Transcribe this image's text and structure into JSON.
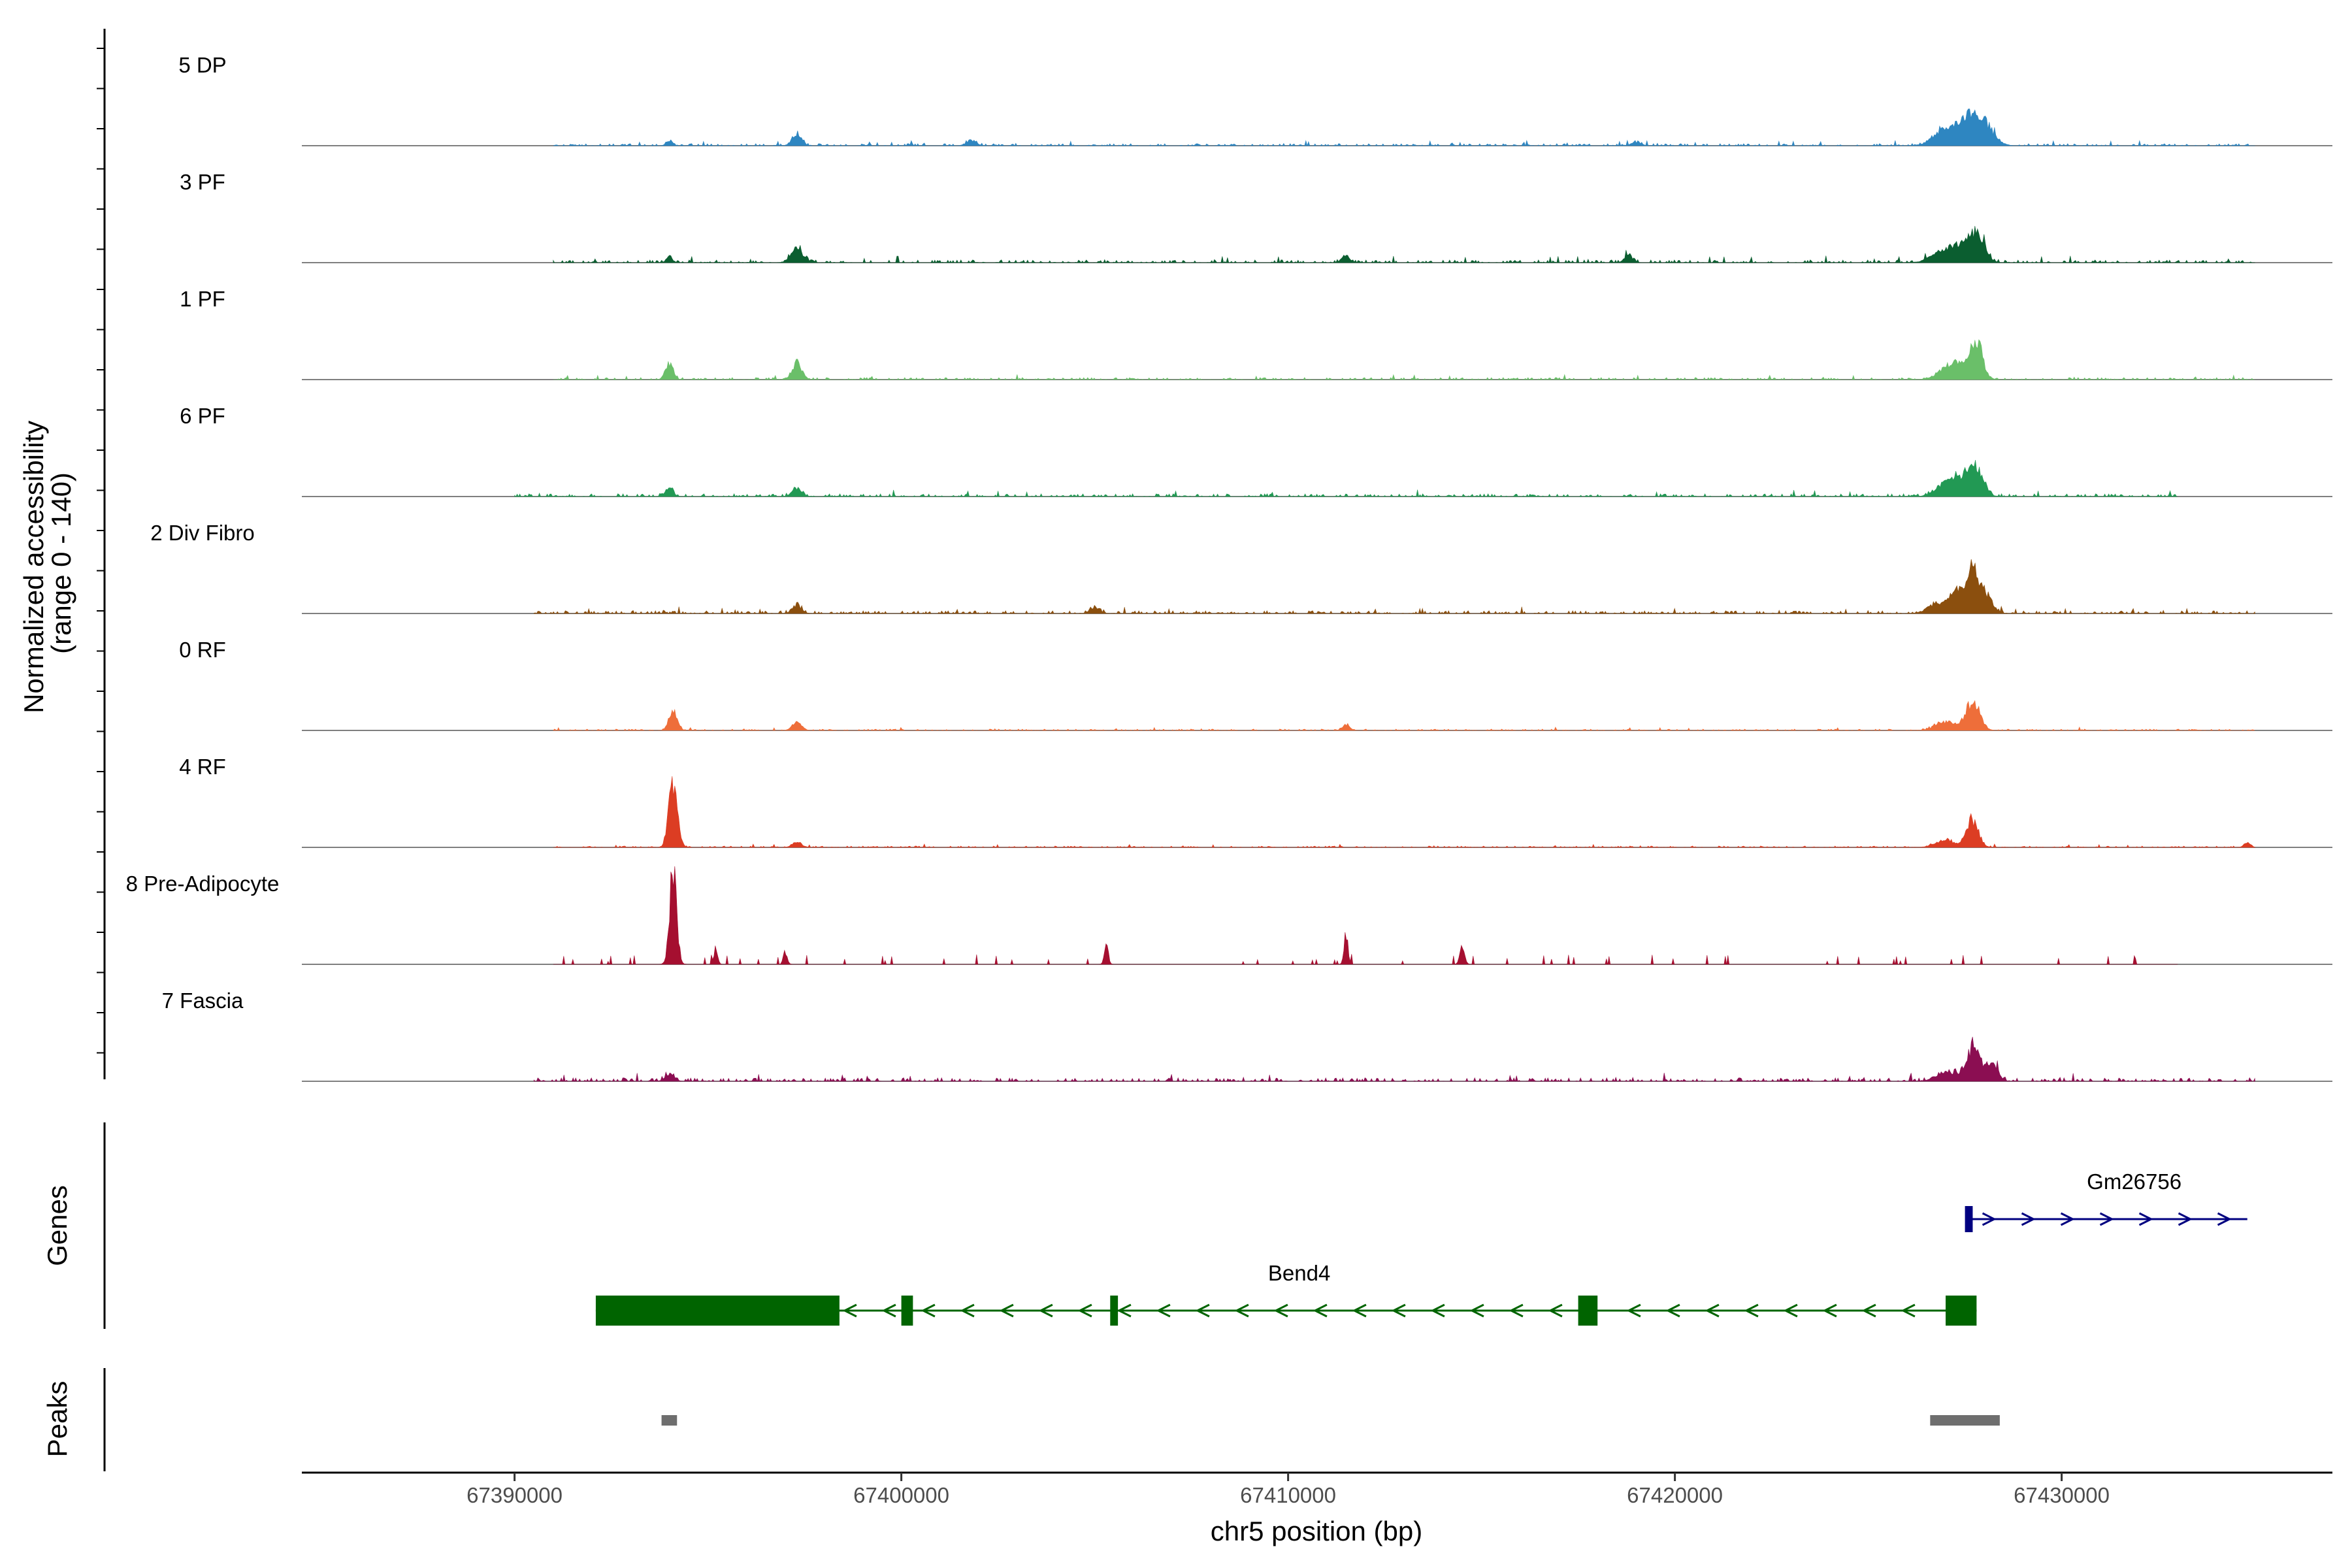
{
  "chart_data": {
    "type": "area",
    "xlabel": "chr5 position (bp)",
    "ylabel": "Normalized accessibility\n(range 0 - 140)",
    "y_range": [
      0,
      140
    ],
    "xlim": [
      67384500,
      67437000
    ],
    "x_ticks": [
      {
        "value": 67390000,
        "label": "67390000"
      },
      {
        "value": 67400000,
        "label": "67400000"
      },
      {
        "value": 67410000,
        "label": "67410000"
      },
      {
        "value": 67420000,
        "label": "67420000"
      },
      {
        "value": 67430000,
        "label": "67430000"
      }
    ],
    "tracks": [
      {
        "name": "5 DP",
        "color": "#2e86c1",
        "start": 67391000,
        "end": 67435000,
        "noise": 3,
        "peaks": [
          [
            67394000,
            8,
            80
          ],
          [
            67397300,
            18,
            120
          ],
          [
            67401800,
            8,
            120
          ],
          [
            67419000,
            5,
            120
          ],
          [
            67427000,
            24,
            300
          ],
          [
            67427600,
            34,
            250
          ],
          [
            67428000,
            28,
            250
          ]
        ]
      },
      {
        "name": "3 PF",
        "color": "#0b5e30",
        "start": 67391000,
        "end": 67435000,
        "noise": 4,
        "peaks": [
          [
            67394000,
            8,
            80
          ],
          [
            67397300,
            20,
            150
          ],
          [
            67411500,
            10,
            100
          ],
          [
            67418800,
            12,
            100
          ],
          [
            67426800,
            12,
            250
          ],
          [
            67427800,
            42,
            200
          ],
          [
            67427300,
            22,
            250
          ]
        ]
      },
      {
        "name": "1 PF",
        "color": "#6abf69",
        "start": 67391000,
        "end": 67435000,
        "noise": 3,
        "peaks": [
          [
            67394000,
            22,
            100
          ],
          [
            67397300,
            22,
            130
          ],
          [
            67427000,
            14,
            250
          ],
          [
            67427800,
            50,
            160
          ],
          [
            67427400,
            20,
            200
          ]
        ]
      },
      {
        "name": "6 PF",
        "color": "#229954",
        "start": 67390000,
        "end": 67433000,
        "noise": 4,
        "peaks": [
          [
            67394000,
            12,
            100
          ],
          [
            67397300,
            12,
            120
          ],
          [
            67427000,
            18,
            250
          ],
          [
            67427800,
            42,
            180
          ],
          [
            67427400,
            22,
            200
          ]
        ]
      },
      {
        "name": "2 Div Fibro",
        "color": "#8b4f0e",
        "start": 67390500,
        "end": 67435000,
        "noise": 4,
        "peaks": [
          [
            67397300,
            12,
            120
          ],
          [
            67405000,
            8,
            120
          ],
          [
            67426800,
            14,
            250
          ],
          [
            67427700,
            55,
            150
          ],
          [
            67427300,
            30,
            180
          ],
          [
            67428000,
            28,
            180
          ]
        ]
      },
      {
        "name": "0 RF",
        "color": "#ee6e3a",
        "start": 67391000,
        "end": 67435000,
        "noise": 2,
        "peaks": [
          [
            67394100,
            32,
            100
          ],
          [
            67397300,
            12,
            120
          ],
          [
            67411500,
            8,
            100
          ],
          [
            67427000,
            12,
            250
          ],
          [
            67427700,
            40,
            180
          ]
        ]
      },
      {
        "name": "4 RF",
        "color": "#dc3d23",
        "start": 67391000,
        "end": 67435000,
        "noise": 2,
        "peaks": [
          [
            67394100,
            95,
            110
          ],
          [
            67397300,
            8,
            120
          ],
          [
            67427000,
            10,
            250
          ],
          [
            67427700,
            40,
            150
          ],
          [
            67434800,
            8,
            80
          ]
        ]
      },
      {
        "name": "8 Pre-Adipocyte",
        "color": "#a50f30",
        "start": 67391000,
        "end": 67433000,
        "noise": 0,
        "peaks": [
          [
            67394100,
            140,
            90
          ],
          [
            67411500,
            45,
            50
          ],
          [
            67405300,
            28,
            50
          ],
          [
            67414500,
            30,
            60
          ],
          [
            67397000,
            18,
            50
          ],
          [
            67395200,
            22,
            50
          ]
        ]
      },
      {
        "name": "7 Fascia",
        "color": "#8b0e52",
        "start": 67390500,
        "end": 67435000,
        "noise": 5,
        "peaks": [
          [
            67394000,
            10,
            120
          ],
          [
            67427000,
            14,
            250
          ],
          [
            67427700,
            48,
            180
          ],
          [
            67428200,
            24,
            150
          ]
        ]
      }
    ],
    "genes": {
      "title": "Genes",
      "items": [
        {
          "name": "Gm26756",
          "strand": "+",
          "color": "#000080",
          "start": 67427600,
          "end": 67434800,
          "exons": [
            [
              67427500,
              67427700
            ]
          ]
        },
        {
          "name": "Bend4",
          "strand": "-",
          "color": "#006400",
          "start": 67392100,
          "end": 67427800,
          "exons": [
            [
              67392100,
              67398400
            ],
            [
              67400000,
              67400300
            ],
            [
              67405400,
              67405600
            ],
            [
              67417500,
              67418000
            ],
            [
              67427000,
              67427800
            ]
          ]
        }
      ]
    },
    "peaks_track": {
      "title": "Peaks",
      "color": "#6e6e6e",
      "regions": [
        [
          67393800,
          67394200
        ],
        [
          67426600,
          67428400
        ]
      ]
    }
  }
}
